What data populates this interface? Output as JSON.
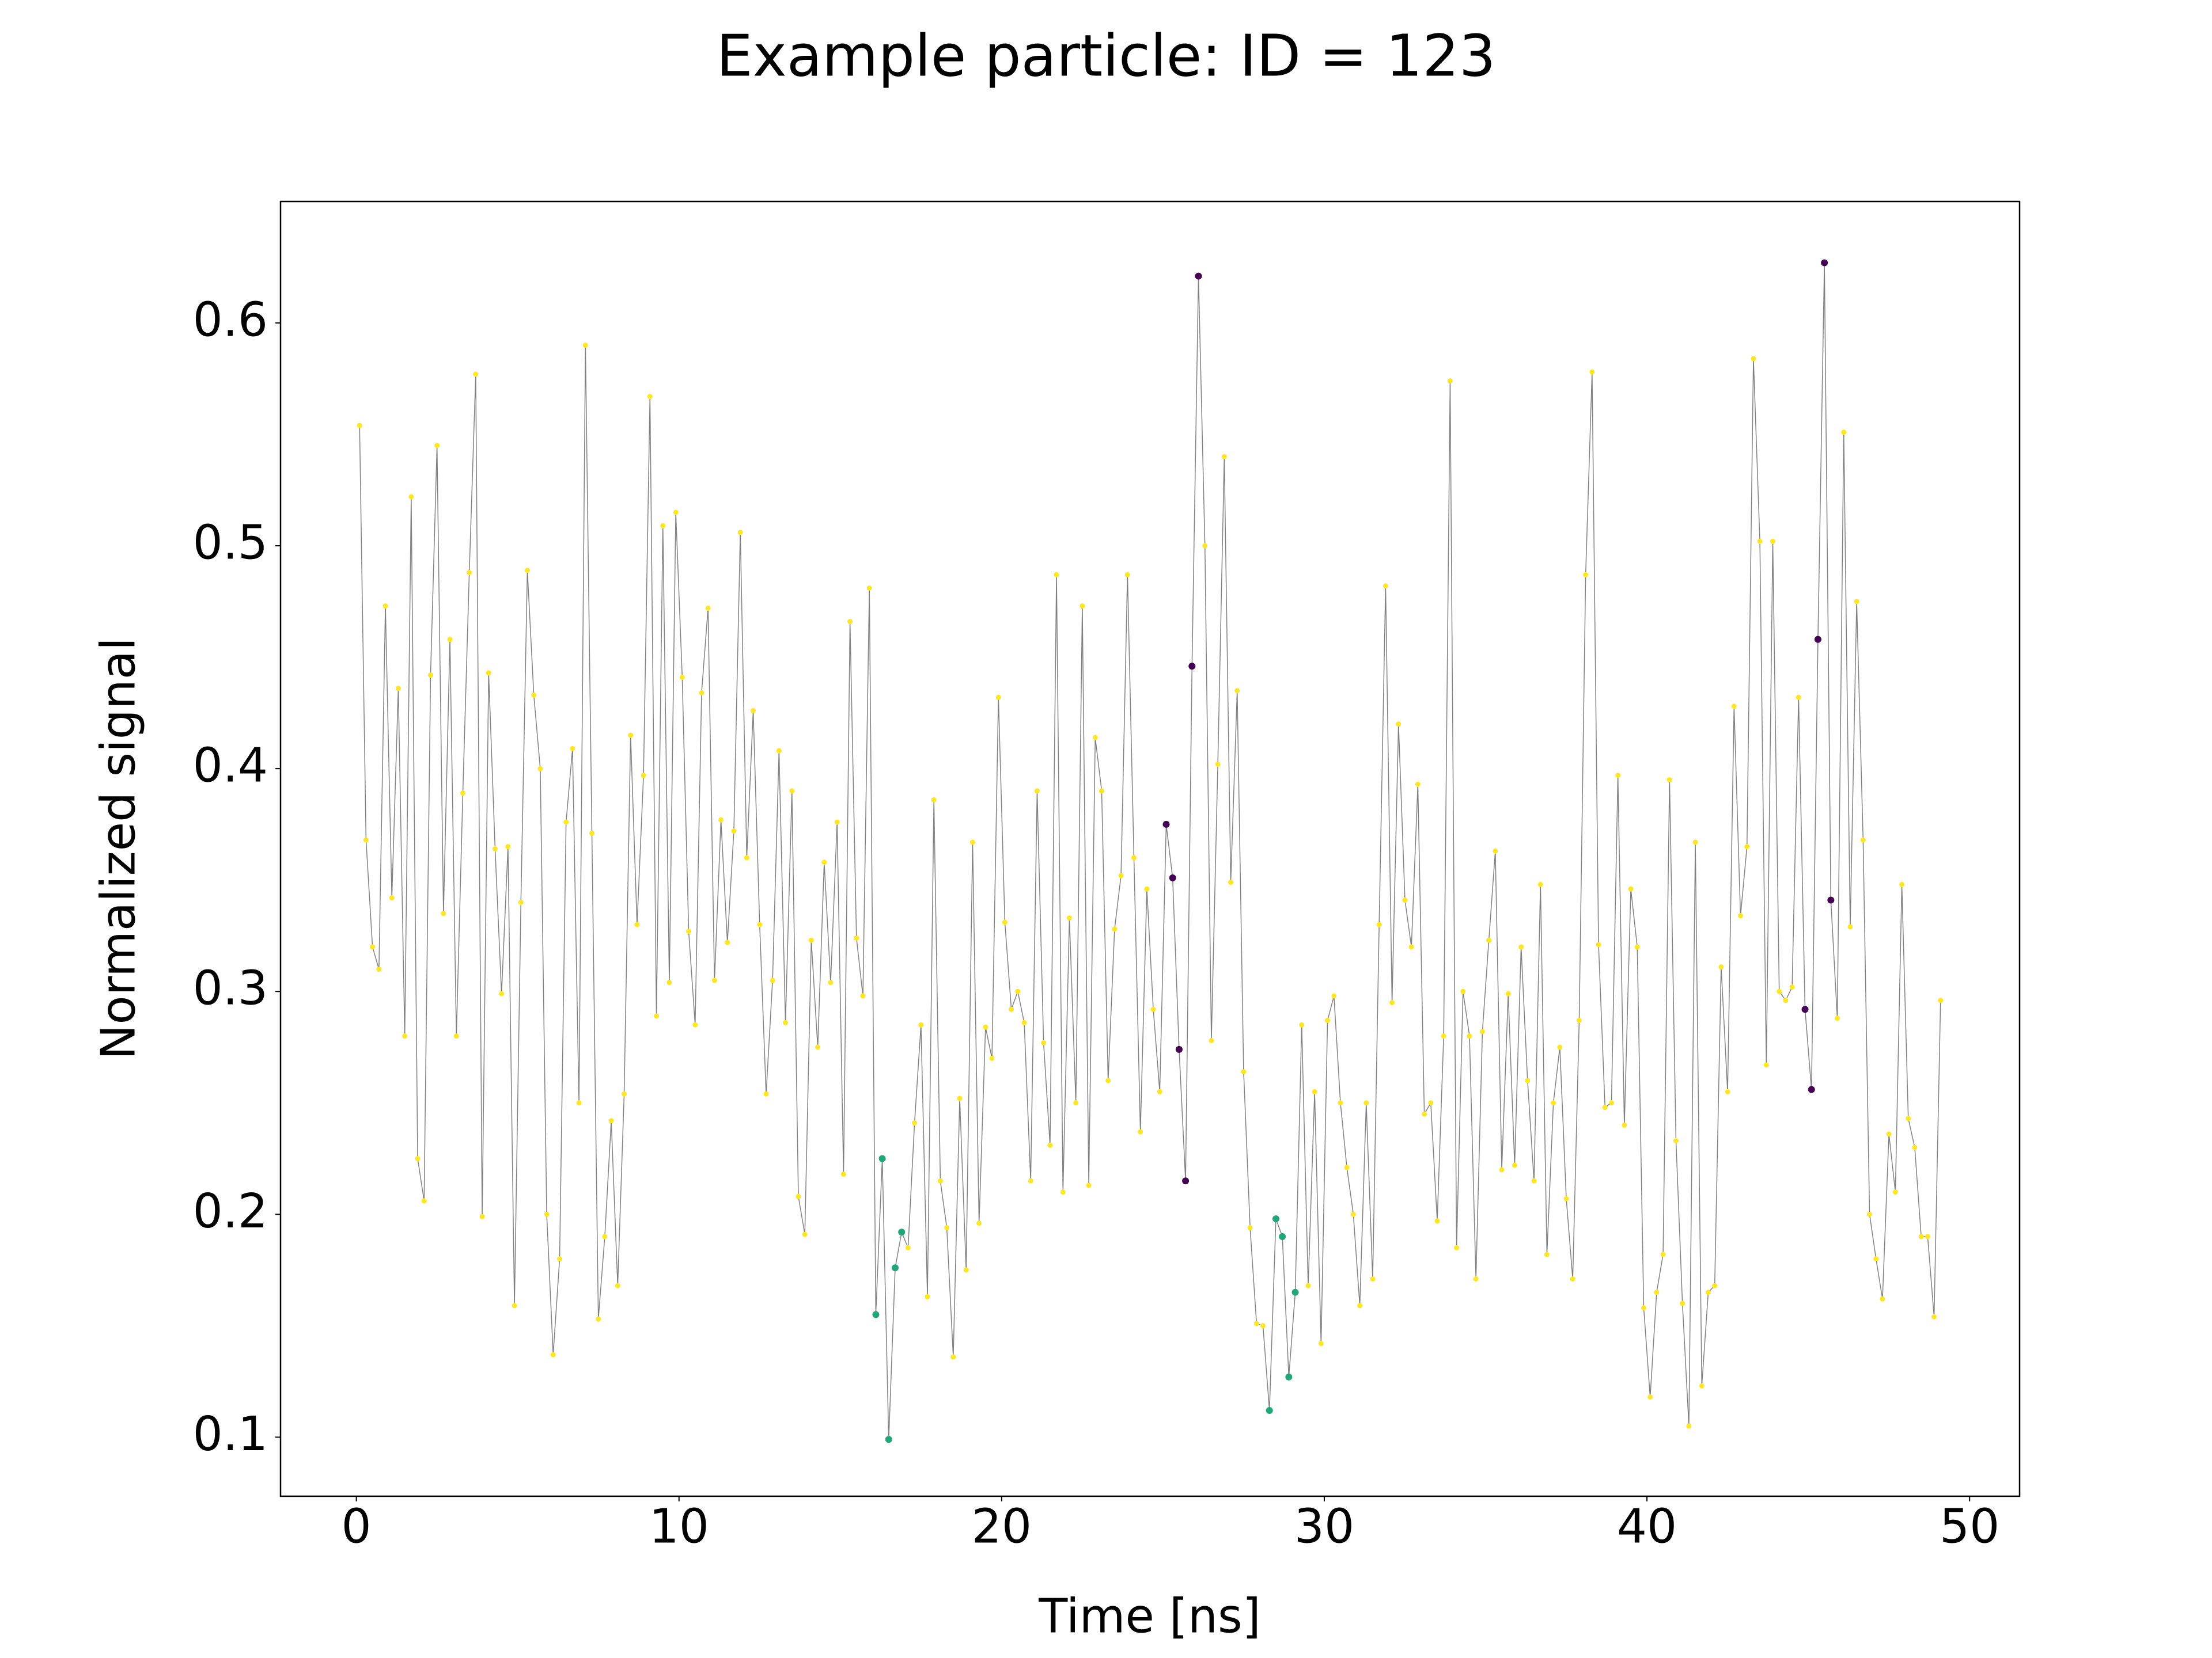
{
  "chart_data": {
    "type": "line",
    "title": "Example particle: ID = 123",
    "x_label": "Time [ns]",
    "y_label": "Normalized signal",
    "x": [
      0.1,
      0.3,
      0.5,
      0.7,
      0.9,
      1.1,
      1.3,
      1.5,
      1.7,
      1.9,
      2.1,
      2.3,
      2.5,
      2.7,
      2.9,
      3.1,
      3.3,
      3.5,
      3.7,
      3.9,
      4.1,
      4.3,
      4.5,
      4.7,
      4.9,
      5.1,
      5.3,
      5.5,
      5.7,
      5.9,
      6.1,
      6.3,
      6.5,
      6.7,
      6.9,
      7.1,
      7.3,
      7.5,
      7.7,
      7.9,
      8.1,
      8.3,
      8.5,
      8.7,
      8.9,
      9.1,
      9.3,
      9.5,
      9.7,
      9.9,
      10.1,
      10.3,
      10.5,
      10.7,
      10.9,
      11.1,
      11.3,
      11.5,
      11.7,
      11.9,
      12.1,
      12.3,
      12.5,
      12.7,
      12.9,
      13.1,
      13.3,
      13.5,
      13.7,
      13.9,
      14.1,
      14.3,
      14.5,
      14.7,
      14.9,
      15.1,
      15.3,
      15.5,
      15.7,
      15.9,
      16.1,
      16.3,
      16.5,
      16.7,
      16.9,
      17.1,
      17.3,
      17.5,
      17.7,
      17.9,
      18.1,
      18.3,
      18.5,
      18.7,
      18.9,
      19.1,
      19.3,
      19.5,
      19.7,
      19.9,
      20.1,
      20.3,
      20.5,
      20.7,
      20.9,
      21.1,
      21.3,
      21.5,
      21.7,
      21.9,
      22.1,
      22.3,
      22.5,
      22.7,
      22.9,
      23.1,
      23.3,
      23.5,
      23.7,
      23.9,
      24.1,
      24.3,
      24.5,
      24.7,
      24.9,
      25.1,
      25.3,
      25.5,
      25.7,
      25.9,
      26.1,
      26.3,
      26.5,
      26.7,
      26.9,
      27.1,
      27.3,
      27.5,
      27.7,
      27.9,
      28.1,
      28.3,
      28.5,
      28.7,
      28.9,
      29.1,
      29.3,
      29.5,
      29.7,
      29.9,
      30.1,
      30.3,
      30.5,
      30.7,
      30.9,
      31.1,
      31.3,
      31.5,
      31.7,
      31.9,
      32.1,
      32.3,
      32.5,
      32.7,
      32.9,
      33.1,
      33.3,
      33.5,
      33.7,
      33.9,
      34.1,
      34.3,
      34.5,
      34.7,
      34.9,
      35.1,
      35.3,
      35.5,
      35.7,
      35.9,
      36.1,
      36.3,
      36.5,
      36.7,
      36.9,
      37.1,
      37.3,
      37.5,
      37.7,
      37.9,
      38.1,
      38.3,
      38.5,
      38.7,
      38.9,
      39.1,
      39.3,
      39.5,
      39.7,
      39.9,
      40.1,
      40.3,
      40.5,
      40.7,
      40.9,
      41.1,
      41.3,
      41.5,
      41.7,
      41.9,
      42.1,
      42.3,
      42.5,
      42.7,
      42.9,
      43.1,
      43.3,
      43.5,
      43.7,
      43.9,
      44.1,
      44.3,
      44.5,
      44.7,
      44.9,
      45.1,
      45.3,
      45.5,
      45.7,
      45.9,
      46.1,
      46.3,
      46.5,
      46.7,
      46.9,
      47.1,
      47.3,
      47.5,
      47.7,
      47.9,
      48.1,
      48.3,
      48.5,
      48.7,
      48.9,
      49.1
    ],
    "values": [
      0.554,
      0.368,
      0.32,
      0.31,
      0.473,
      0.342,
      0.436,
      0.28,
      0.522,
      0.225,
      0.206,
      0.442,
      0.545,
      0.335,
      0.458,
      0.28,
      0.389,
      0.488,
      0.577,
      0.199,
      0.443,
      0.364,
      0.299,
      0.365,
      0.159,
      0.34,
      0.489,
      0.433,
      0.4,
      0.2,
      0.137,
      0.18,
      0.376,
      0.409,
      0.25,
      0.59,
      0.371,
      0.153,
      0.19,
      0.242,
      0.168,
      0.254,
      0.415,
      0.33,
      0.397,
      0.567,
      0.289,
      0.509,
      0.304,
      0.515,
      0.441,
      0.327,
      0.285,
      0.434,
      0.472,
      0.305,
      0.377,
      0.322,
      0.372,
      0.506,
      0.36,
      0.426,
      0.33,
      0.254,
      0.305,
      0.408,
      0.286,
      0.39,
      0.208,
      0.191,
      0.323,
      0.275,
      0.358,
      0.304,
      0.376,
      0.218,
      0.466,
      0.324,
      0.298,
      0.481,
      0.155,
      0.225,
      0.099,
      0.176,
      0.192,
      0.185,
      0.241,
      0.285,
      0.163,
      0.386,
      0.215,
      0.194,
      0.136,
      0.252,
      0.175,
      0.367,
      0.196,
      0.284,
      0.27,
      0.432,
      0.331,
      0.292,
      0.3,
      0.286,
      0.215,
      0.39,
      0.277,
      0.231,
      0.487,
      0.21,
      0.333,
      0.25,
      0.473,
      0.213,
      0.414,
      0.39,
      0.26,
      0.328,
      0.352,
      0.487,
      0.36,
      0.237,
      0.346,
      0.292,
      0.255,
      0.375,
      0.351,
      0.274,
      0.215,
      0.446,
      0.621,
      0.5,
      0.278,
      0.402,
      0.54,
      0.349,
      0.435,
      0.264,
      0.194,
      0.151,
      0.15,
      0.112,
      0.198,
      0.19,
      0.127,
      0.165,
      0.285,
      0.168,
      0.255,
      0.142,
      0.287,
      0.298,
      0.25,
      0.221,
      0.2,
      0.159,
      0.25,
      0.171,
      0.33,
      0.482,
      0.295,
      0.42,
      0.341,
      0.32,
      0.393,
      0.245,
      0.25,
      0.197,
      0.28,
      0.574,
      0.185,
      0.3,
      0.28,
      0.171,
      0.282,
      0.323,
      0.363,
      0.22,
      0.299,
      0.222,
      0.32,
      0.26,
      0.215,
      0.348,
      0.182,
      0.25,
      0.275,
      0.207,
      0.171,
      0.287,
      0.487,
      0.578,
      0.321,
      0.248,
      0.25,
      0.397,
      0.24,
      0.346,
      0.32,
      0.158,
      0.118,
      0.165,
      0.182,
      0.395,
      0.233,
      0.16,
      0.105,
      0.367,
      0.123,
      0.165,
      0.168,
      0.311,
      0.255,
      0.428,
      0.334,
      0.365,
      0.584,
      0.502,
      0.267,
      0.502,
      0.3,
      0.296,
      0.302,
      0.432,
      0.292,
      0.256,
      0.458,
      0.627,
      0.341,
      0.288,
      0.551,
      0.329,
      0.475,
      0.368,
      0.2,
      0.18,
      0.162,
      0.236,
      0.21,
      0.348,
      0.243,
      0.23,
      0.19,
      0.19,
      0.154,
      0.296
    ],
    "point_colors": [
      "#fde725",
      "#fde725",
      "#fde725",
      "#fde725",
      "#fde725",
      "#fde725",
      "#fde725",
      "#fde725",
      "#fde725",
      "#fde725",
      "#fde725",
      "#fde725",
      "#fde725",
      "#fde725",
      "#fde725",
      "#fde725",
      "#fde725",
      "#fde725",
      "#fde725",
      "#fde725",
      "#fde725",
      "#fde725",
      "#fde725",
      "#fde725",
      "#fde725",
      "#fde725",
      "#fde725",
      "#fde725",
      "#fde725",
      "#fde725",
      "#fde725",
      "#fde725",
      "#fde725",
      "#fde725",
      "#fde725",
      "#fde725",
      "#fde725",
      "#fde725",
      "#fde725",
      "#fde725",
      "#fde725",
      "#fde725",
      "#fde725",
      "#fde725",
      "#fde725",
      "#fde725",
      "#fde725",
      "#fde725",
      "#fde725",
      "#fde725",
      "#fde725",
      "#fde725",
      "#fde725",
      "#fde725",
      "#fde725",
      "#fde725",
      "#fde725",
      "#fde725",
      "#fde725",
      "#fde725",
      "#fde725",
      "#fde725",
      "#fde725",
      "#fde725",
      "#fde725",
      "#fde725",
      "#fde725",
      "#fde725",
      "#fde725",
      "#fde725",
      "#fde725",
      "#fde725",
      "#fde725",
      "#fde725",
      "#fde725",
      "#fde725",
      "#fde725",
      "#fde725",
      "#fde725",
      "#fde725",
      "#21a67a",
      "#21a67a",
      "#21a67a",
      "#21a67a",
      "#21a67a",
      "#fde725",
      "#fde725",
      "#fde725",
      "#fde725",
      "#fde725",
      "#fde725",
      "#fde725",
      "#fde725",
      "#fde725",
      "#fde725",
      "#fde725",
      "#fde725",
      "#fde725",
      "#fde725",
      "#fde725",
      "#fde725",
      "#fde725",
      "#fde725",
      "#fde725",
      "#fde725",
      "#fde725",
      "#fde725",
      "#fde725",
      "#fde725",
      "#fde725",
      "#fde725",
      "#fde725",
      "#fde725",
      "#fde725",
      "#fde725",
      "#fde725",
      "#fde725",
      "#fde725",
      "#fde725",
      "#fde725",
      "#fde725",
      "#fde725",
      "#fde725",
      "#fde725",
      "#fde725",
      "#440154",
      "#440154",
      "#440154",
      "#440154",
      "#440154",
      "#440154",
      "#fde725",
      "#fde725",
      "#fde725",
      "#fde725",
      "#fde725",
      "#fde725",
      "#fde725",
      "#fde725",
      "#fde725",
      "#fde725",
      "#21a67a",
      "#21a67a",
      "#21a67a",
      "#21a67a",
      "#21a67a",
      "#fde725",
      "#fde725",
      "#fde725",
      "#fde725",
      "#fde725",
      "#fde725",
      "#fde725",
      "#fde725",
      "#fde725",
      "#fde725",
      "#fde725",
      "#fde725",
      "#fde725",
      "#fde725",
      "#fde725",
      "#fde725",
      "#fde725",
      "#fde725",
      "#fde725",
      "#fde725",
      "#fde725",
      "#fde725",
      "#fde725",
      "#fde725",
      "#fde725",
      "#fde725",
      "#fde725",
      "#fde725",
      "#fde725",
      "#fde725",
      "#fde725",
      "#fde725",
      "#fde725",
      "#fde725",
      "#fde725",
      "#fde725",
      "#fde725",
      "#fde725",
      "#fde725",
      "#fde725",
      "#fde725",
      "#fde725",
      "#fde725",
      "#fde725",
      "#fde725",
      "#fde725",
      "#fde725",
      "#fde725",
      "#fde725",
      "#fde725",
      "#fde725",
      "#fde725",
      "#fde725",
      "#fde725",
      "#fde725",
      "#fde725",
      "#fde725",
      "#fde725",
      "#fde725",
      "#fde725",
      "#fde725",
      "#fde725",
      "#fde725",
      "#fde725",
      "#fde725",
      "#fde725",
      "#fde725",
      "#fde725",
      "#fde725",
      "#fde725",
      "#fde725",
      "#fde725",
      "#fde725",
      "#fde725",
      "#fde725",
      "#fde725",
      "#fde725",
      "#fde725",
      "#440154",
      "#440154",
      "#440154",
      "#440154",
      "#440154",
      "#fde725",
      "#fde725",
      "#fde725",
      "#fde725",
      "#fde725",
      "#fde725",
      "#fde725",
      "#fde725",
      "#fde725",
      "#fde725",
      "#fde725",
      "#fde725",
      "#fde725",
      "#fde725",
      "#fde725",
      "#fde725",
      "#fde725"
    ],
    "line_color": "#808080",
    "xlim": [
      -2.35,
      51.55
    ],
    "xticks": [
      0,
      10,
      20,
      30,
      40,
      50
    ],
    "ylim": [
      0.0735,
      0.6545
    ],
    "yticks": [
      0.1,
      0.2,
      0.3,
      0.4,
      0.5,
      0.6
    ]
  }
}
